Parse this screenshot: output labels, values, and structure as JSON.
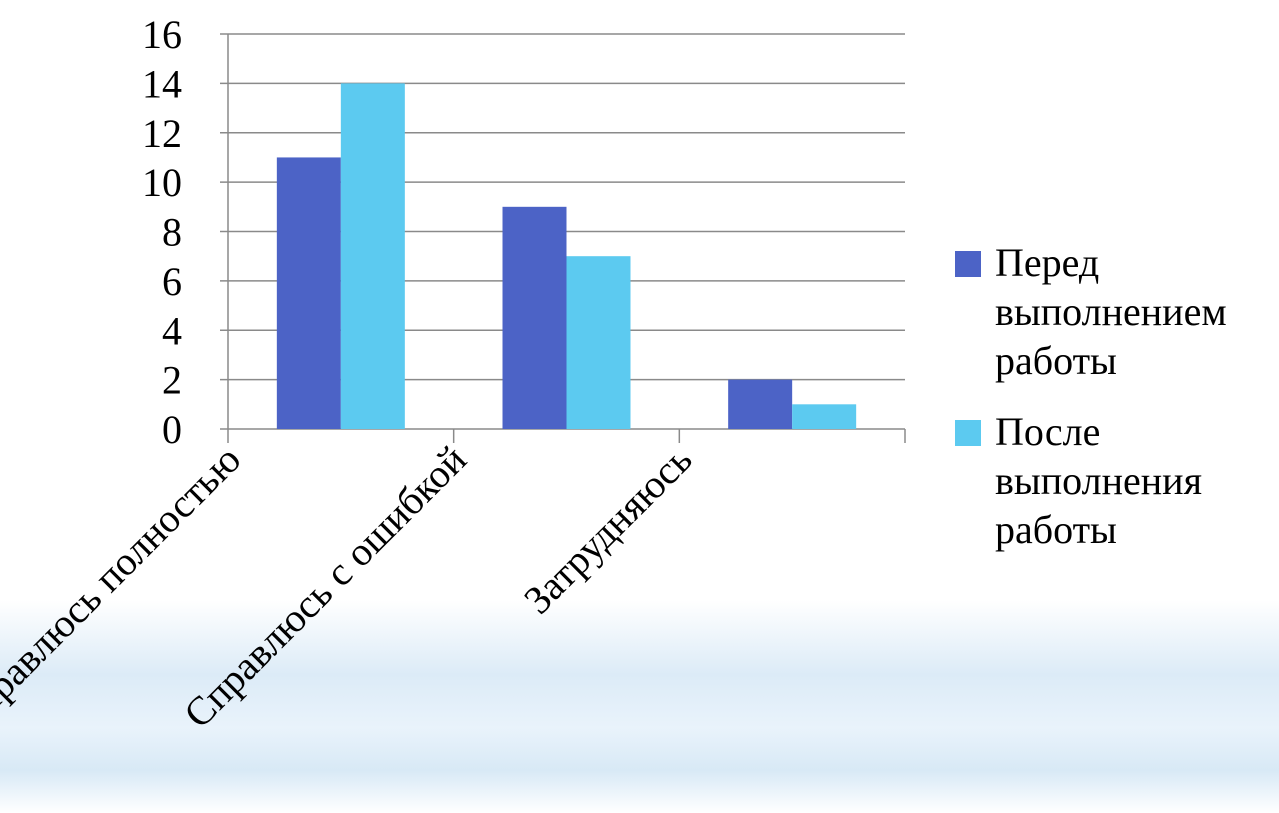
{
  "chart_data": {
    "type": "bar",
    "categories": [
      "Справлюсь полностью",
      "Справлюсь с ошибкой",
      "Затрудняюсь"
    ],
    "series": [
      {
        "name": "Перед выполнением работы",
        "values": [
          11,
          9,
          2
        ],
        "color": "#4c63c6"
      },
      {
        "name": "После выполнения работы",
        "values": [
          14,
          7,
          1
        ],
        "color": "#5ccaf0"
      }
    ],
    "ylim": [
      0,
      16
    ],
    "yticks": [
      0,
      2,
      4,
      6,
      8,
      10,
      12,
      14,
      16
    ],
    "grid": true,
    "legend_position": "right",
    "title": "",
    "xlabel": "",
    "ylabel": ""
  },
  "legend": {
    "items": [
      {
        "label_lines": [
          "Перед",
          "выполнением",
          "работы"
        ],
        "color": "#4c63c6"
      },
      {
        "label_lines": [
          "После",
          "выполнения",
          "работы"
        ],
        "color": "#5ccaf0"
      }
    ]
  }
}
